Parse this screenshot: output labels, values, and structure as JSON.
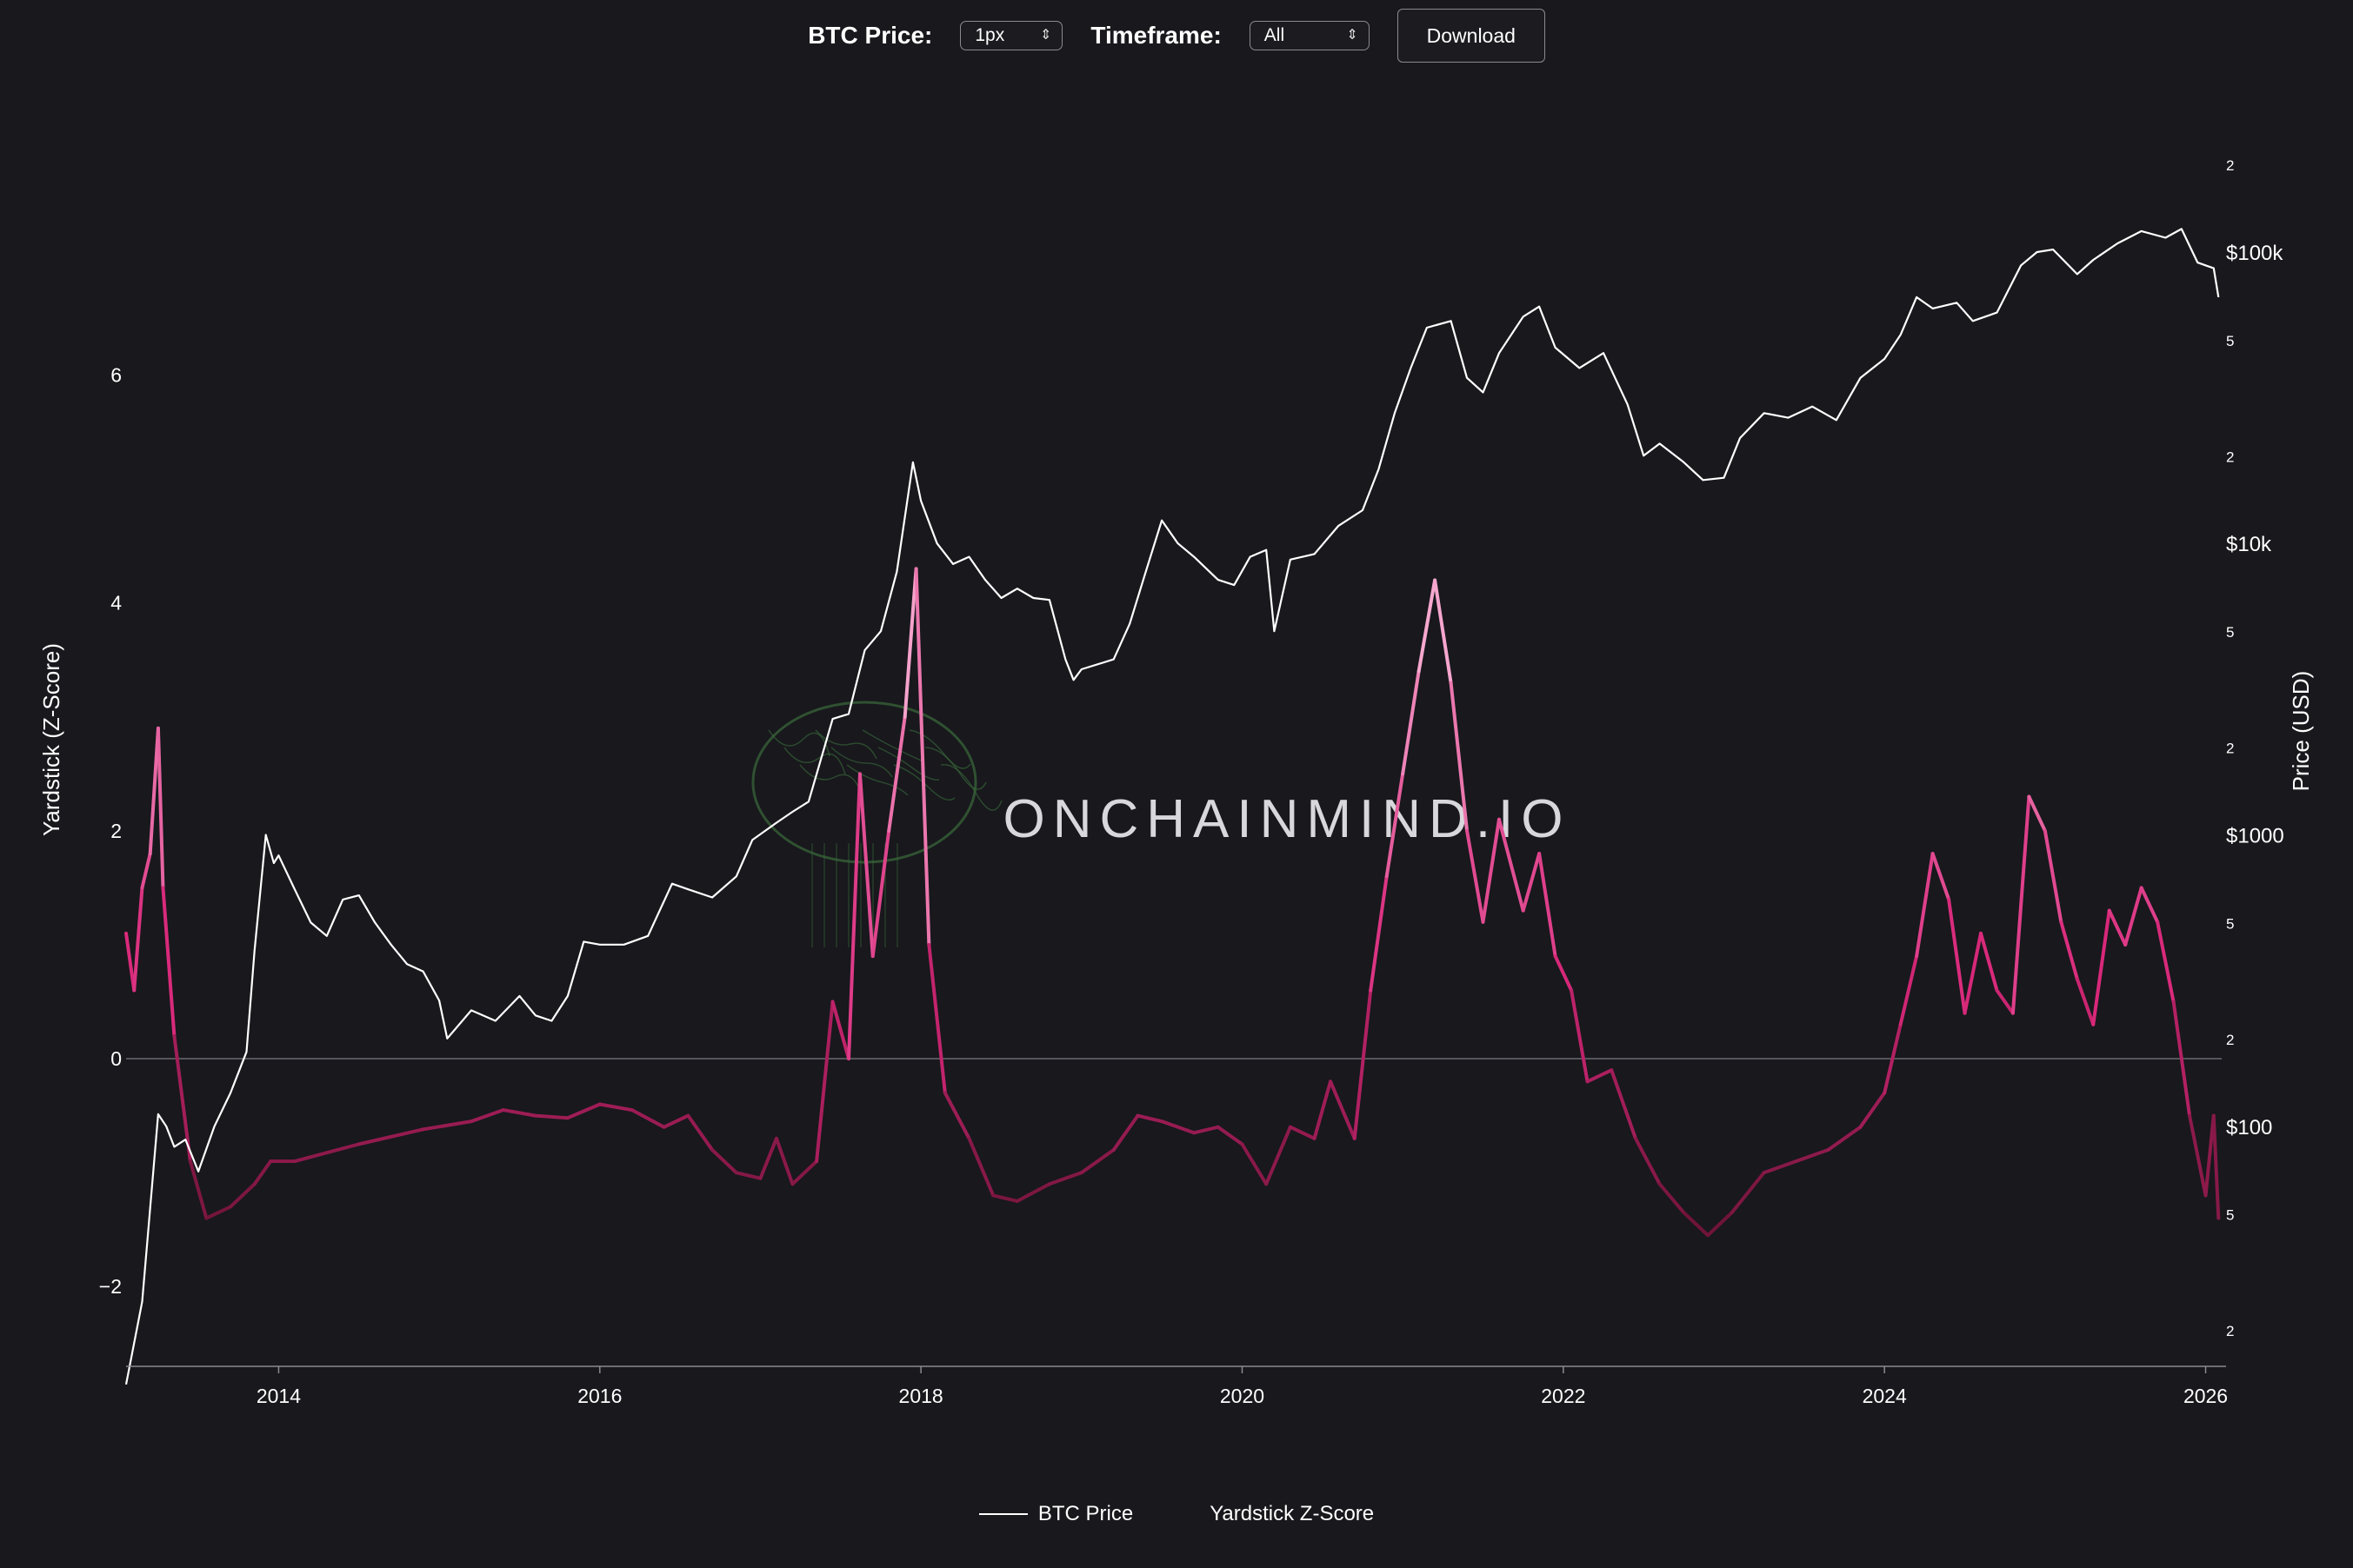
{
  "controls": {
    "price_label": "BTC Price:",
    "price_value": "1px",
    "timeframe_label": "Timeframe:",
    "timeframe_value": "All",
    "download_label": "Download"
  },
  "watermark": "ONCHAINMIND.IO",
  "colors": {
    "background": "#18181d",
    "price_line": "#ffffff",
    "zscore_low": "#6e1438",
    "zscore_mid": "#d8287a",
    "zscore_high": "#f7a8cf",
    "watermark_green": "#3a6a3a"
  },
  "chart_data": {
    "type": "line",
    "x_ticks": [
      "2014",
      "2016",
      "2018",
      "2020",
      "2022",
      "2024",
      "2026"
    ],
    "y_left": {
      "label": "Yardstick (Z-Score)",
      "ticks": [
        "−2",
        "0",
        "2",
        "4",
        "6"
      ],
      "range": [
        -2.7,
        8.3
      ]
    },
    "y_right": {
      "label": "Price (USD)",
      "scale": "log",
      "range": [
        15,
        300000
      ],
      "ticks": [
        "2",
        "5",
        "$100",
        "2",
        "5",
        "$1000",
        "2",
        "5",
        "$10k",
        "2",
        "5",
        "$100k",
        "2"
      ]
    },
    "legend_position": "bottom-center",
    "series": [
      {
        "name": "BTC Price",
        "points": [
          [
            2013.05,
            13
          ],
          [
            2013.15,
            25
          ],
          [
            2013.25,
            110
          ],
          [
            2013.3,
            100
          ],
          [
            2013.35,
            85
          ],
          [
            2013.42,
            90
          ],
          [
            2013.5,
            70
          ],
          [
            2013.6,
            100
          ],
          [
            2013.7,
            130
          ],
          [
            2013.8,
            180
          ],
          [
            2013.85,
            400
          ],
          [
            2013.92,
            1000
          ],
          [
            2013.97,
            800
          ],
          [
            2014.0,
            850
          ],
          [
            2014.1,
            650
          ],
          [
            2014.2,
            500
          ],
          [
            2014.3,
            450
          ],
          [
            2014.4,
            600
          ],
          [
            2014.5,
            620
          ],
          [
            2014.6,
            500
          ],
          [
            2014.7,
            420
          ],
          [
            2014.8,
            360
          ],
          [
            2014.9,
            340
          ],
          [
            2015.0,
            270
          ],
          [
            2015.05,
            200
          ],
          [
            2015.2,
            250
          ],
          [
            2015.35,
            230
          ],
          [
            2015.5,
            280
          ],
          [
            2015.6,
            240
          ],
          [
            2015.7,
            230
          ],
          [
            2015.8,
            280
          ],
          [
            2015.9,
            430
          ],
          [
            2016.0,
            420
          ],
          [
            2016.15,
            420
          ],
          [
            2016.3,
            450
          ],
          [
            2016.45,
            680
          ],
          [
            2016.55,
            650
          ],
          [
            2016.7,
            610
          ],
          [
            2016.85,
            720
          ],
          [
            2016.95,
            960
          ],
          [
            2017.1,
            1100
          ],
          [
            2017.2,
            1200
          ],
          [
            2017.3,
            1300
          ],
          [
            2017.45,
            2500
          ],
          [
            2017.55,
            2600
          ],
          [
            2017.65,
            4300
          ],
          [
            2017.75,
            5000
          ],
          [
            2017.85,
            8000
          ],
          [
            2017.95,
            19000
          ],
          [
            2018.0,
            14000
          ],
          [
            2018.1,
            10000
          ],
          [
            2018.2,
            8500
          ],
          [
            2018.3,
            9000
          ],
          [
            2018.4,
            7500
          ],
          [
            2018.5,
            6500
          ],
          [
            2018.6,
            7000
          ],
          [
            2018.7,
            6500
          ],
          [
            2018.8,
            6400
          ],
          [
            2018.9,
            4000
          ],
          [
            2018.95,
            3400
          ],
          [
            2019.0,
            3700
          ],
          [
            2019.2,
            4000
          ],
          [
            2019.3,
            5300
          ],
          [
            2019.4,
            8000
          ],
          [
            2019.5,
            12000
          ],
          [
            2019.6,
            10000
          ],
          [
            2019.7,
            9000
          ],
          [
            2019.85,
            7500
          ],
          [
            2019.95,
            7200
          ],
          [
            2020.05,
            9000
          ],
          [
            2020.15,
            9500
          ],
          [
            2020.2,
            5000
          ],
          [
            2020.3,
            8800
          ],
          [
            2020.45,
            9200
          ],
          [
            2020.6,
            11500
          ],
          [
            2020.75,
            13000
          ],
          [
            2020.85,
            18000
          ],
          [
            2020.95,
            28000
          ],
          [
            2021.05,
            40000
          ],
          [
            2021.15,
            55000
          ],
          [
            2021.3,
            58000
          ],
          [
            2021.4,
            37000
          ],
          [
            2021.5,
            33000
          ],
          [
            2021.6,
            45000
          ],
          [
            2021.75,
            60000
          ],
          [
            2021.85,
            65000
          ],
          [
            2021.95,
            47000
          ],
          [
            2022.1,
            40000
          ],
          [
            2022.25,
            45000
          ],
          [
            2022.4,
            30000
          ],
          [
            2022.5,
            20000
          ],
          [
            2022.6,
            22000
          ],
          [
            2022.75,
            19000
          ],
          [
            2022.87,
            16500
          ],
          [
            2023.0,
            16800
          ],
          [
            2023.1,
            23000
          ],
          [
            2023.25,
            28000
          ],
          [
            2023.4,
            27000
          ],
          [
            2023.55,
            29500
          ],
          [
            2023.7,
            26500
          ],
          [
            2023.85,
            37000
          ],
          [
            2024.0,
            43000
          ],
          [
            2024.1,
            52000
          ],
          [
            2024.2,
            70000
          ],
          [
            2024.3,
            64000
          ],
          [
            2024.45,
            67000
          ],
          [
            2024.55,
            58000
          ],
          [
            2024.7,
            62000
          ],
          [
            2024.85,
            90000
          ],
          [
            2024.95,
            100000
          ],
          [
            2025.05,
            102000
          ],
          [
            2025.2,
            84000
          ],
          [
            2025.3,
            94000
          ],
          [
            2025.45,
            107000
          ],
          [
            2025.6,
            118000
          ],
          [
            2025.75,
            112000
          ],
          [
            2025.85,
            120000
          ],
          [
            2025.95,
            92000
          ],
          [
            2026.05,
            88000
          ],
          [
            2026.08,
            70000
          ]
        ]
      },
      {
        "name": "Yardstick Z-Score",
        "points": [
          [
            2013.05,
            1.1
          ],
          [
            2013.1,
            0.6
          ],
          [
            2013.15,
            1.5
          ],
          [
            2013.2,
            1.8
          ],
          [
            2013.25,
            2.9
          ],
          [
            2013.28,
            1.5
          ],
          [
            2013.35,
            0.2
          ],
          [
            2013.45,
            -0.9
          ],
          [
            2013.55,
            -1.4
          ],
          [
            2013.7,
            -1.3
          ],
          [
            2013.85,
            -1.1
          ],
          [
            2013.95,
            -0.9
          ],
          [
            2014.1,
            -0.9
          ],
          [
            2014.5,
            -0.75
          ],
          [
            2014.9,
            -0.62
          ],
          [
            2015.2,
            -0.55
          ],
          [
            2015.4,
            -0.45
          ],
          [
            2015.6,
            -0.5
          ],
          [
            2015.8,
            -0.52
          ],
          [
            2016.0,
            -0.4
          ],
          [
            2016.2,
            -0.45
          ],
          [
            2016.4,
            -0.6
          ],
          [
            2016.55,
            -0.5
          ],
          [
            2016.7,
            -0.8
          ],
          [
            2016.85,
            -1.0
          ],
          [
            2017.0,
            -1.05
          ],
          [
            2017.1,
            -0.7
          ],
          [
            2017.2,
            -1.1
          ],
          [
            2017.35,
            -0.9
          ],
          [
            2017.45,
            0.5
          ],
          [
            2017.55,
            0.0
          ],
          [
            2017.62,
            2.5
          ],
          [
            2017.7,
            0.9
          ],
          [
            2017.8,
            2.0
          ],
          [
            2017.9,
            3.0
          ],
          [
            2017.97,
            4.3
          ],
          [
            2018.05,
            1.0
          ],
          [
            2018.15,
            -0.3
          ],
          [
            2018.3,
            -0.7
          ],
          [
            2018.45,
            -1.2
          ],
          [
            2018.6,
            -1.25
          ],
          [
            2018.8,
            -1.1
          ],
          [
            2019.0,
            -1.0
          ],
          [
            2019.2,
            -0.8
          ],
          [
            2019.35,
            -0.5
          ],
          [
            2019.5,
            -0.55
          ],
          [
            2019.7,
            -0.65
          ],
          [
            2019.85,
            -0.6
          ],
          [
            2020.0,
            -0.75
          ],
          [
            2020.15,
            -1.1
          ],
          [
            2020.3,
            -0.6
          ],
          [
            2020.45,
            -0.7
          ],
          [
            2020.55,
            -0.2
          ],
          [
            2020.7,
            -0.7
          ],
          [
            2020.8,
            0.6
          ],
          [
            2020.9,
            1.6
          ],
          [
            2021.0,
            2.5
          ],
          [
            2021.1,
            3.4
          ],
          [
            2021.2,
            4.2
          ],
          [
            2021.3,
            3.3
          ],
          [
            2021.4,
            2.0
          ],
          [
            2021.5,
            1.2
          ],
          [
            2021.6,
            2.1
          ],
          [
            2021.75,
            1.3
          ],
          [
            2021.85,
            1.8
          ],
          [
            2021.95,
            0.9
          ],
          [
            2022.05,
            0.6
          ],
          [
            2022.15,
            -0.2
          ],
          [
            2022.3,
            -0.1
          ],
          [
            2022.45,
            -0.7
          ],
          [
            2022.6,
            -1.1
          ],
          [
            2022.75,
            -1.35
          ],
          [
            2022.9,
            -1.55
          ],
          [
            2023.05,
            -1.35
          ],
          [
            2023.25,
            -1.0
          ],
          [
            2023.45,
            -0.9
          ],
          [
            2023.65,
            -0.8
          ],
          [
            2023.85,
            -0.6
          ],
          [
            2024.0,
            -0.3
          ],
          [
            2024.1,
            0.3
          ],
          [
            2024.2,
            0.9
          ],
          [
            2024.3,
            1.8
          ],
          [
            2024.4,
            1.4
          ],
          [
            2024.5,
            0.4
          ],
          [
            2024.6,
            1.1
          ],
          [
            2024.7,
            0.6
          ],
          [
            2024.8,
            0.4
          ],
          [
            2024.9,
            2.3
          ],
          [
            2025.0,
            2.0
          ],
          [
            2025.1,
            1.2
          ],
          [
            2025.2,
            0.7
          ],
          [
            2025.3,
            0.3
          ],
          [
            2025.4,
            1.3
          ],
          [
            2025.5,
            1.0
          ],
          [
            2025.6,
            1.5
          ],
          [
            2025.7,
            1.2
          ],
          [
            2025.8,
            0.5
          ],
          [
            2025.9,
            -0.5
          ],
          [
            2026.0,
            -1.2
          ],
          [
            2026.05,
            -0.5
          ],
          [
            2026.08,
            -1.4
          ]
        ]
      }
    ]
  }
}
